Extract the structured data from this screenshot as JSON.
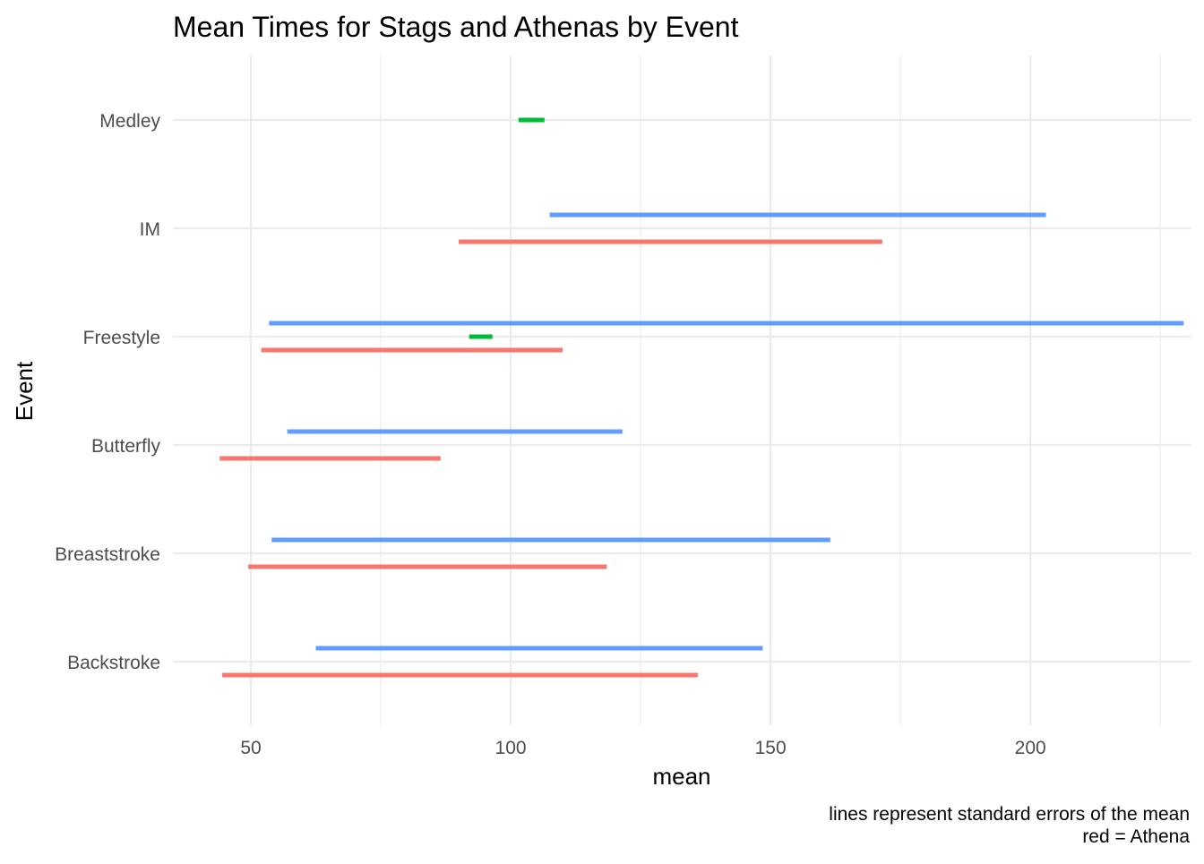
{
  "chart_data": {
    "type": "errorbar",
    "title": "Mean Times for Stags and Athenas by Event",
    "xlabel": "mean",
    "ylabel": "Event",
    "caption": [
      "lines represent standard errors of the mean",
      "red = Athena"
    ],
    "xlim": [
      35,
      231
    ],
    "x_ticks": [
      50,
      100,
      150,
      200
    ],
    "x_minor_ticks": [
      75,
      125,
      175,
      225
    ],
    "categories": [
      "Backstroke",
      "Breaststroke",
      "Butterfly",
      "Freestyle",
      "IM",
      "Medley"
    ],
    "grid": true,
    "colors": {
      "athena": "#F8766D",
      "relay": "#00BA38",
      "stag": "#619CFF"
    },
    "series": [
      {
        "color_key": "athena",
        "intervals": [
          {
            "category": "Backstroke",
            "min": 44.5,
            "max": 136
          },
          {
            "category": "Breaststroke",
            "min": 49.5,
            "max": 118.5
          },
          {
            "category": "Butterfly",
            "min": 44,
            "max": 86.5
          },
          {
            "category": "Freestyle",
            "min": 52,
            "max": 110
          },
          {
            "category": "IM",
            "min": 90,
            "max": 171.5
          }
        ]
      },
      {
        "color_key": "relay",
        "intervals": [
          {
            "category": "Freestyle",
            "min": 92,
            "max": 96.5
          },
          {
            "category": "Medley",
            "min": 101.5,
            "max": 106.5
          }
        ]
      },
      {
        "color_key": "stag",
        "intervals": [
          {
            "category": "Backstroke",
            "min": 62.5,
            "max": 148.5
          },
          {
            "category": "Breaststroke",
            "min": 54,
            "max": 161.5
          },
          {
            "category": "Butterfly",
            "min": 57,
            "max": 121.5
          },
          {
            "category": "Freestyle",
            "min": 53.5,
            "max": 229.5
          },
          {
            "category": "IM",
            "min": 107.5,
            "max": 203
          }
        ]
      }
    ]
  }
}
